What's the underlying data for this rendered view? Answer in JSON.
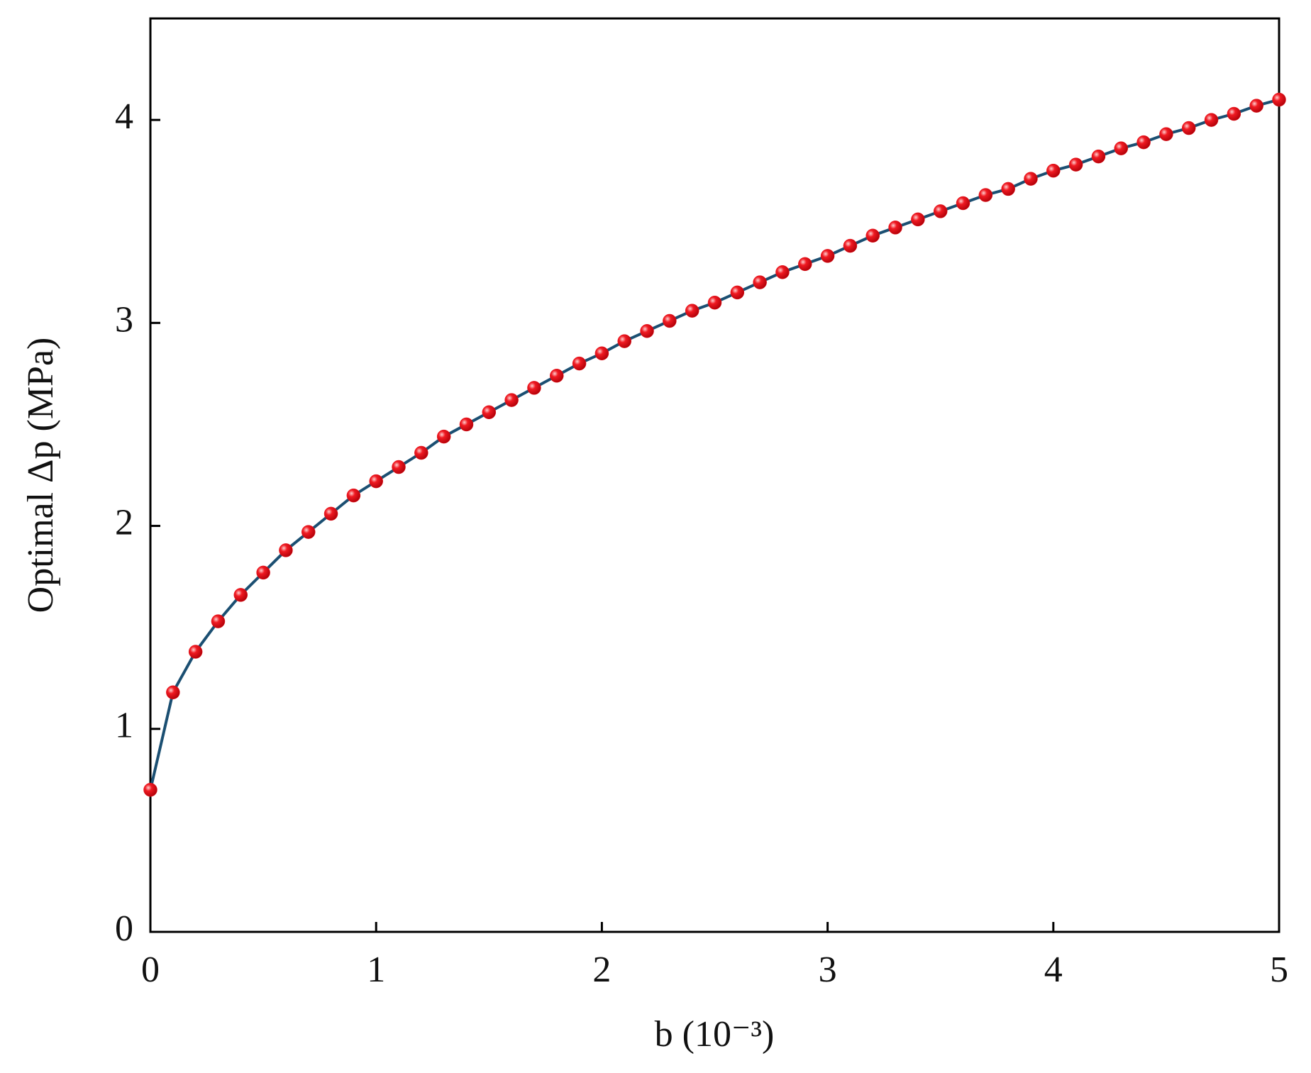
{
  "chart_data": {
    "type": "line",
    "xlabel": "b (10⁻³)",
    "ylabel": "Optimal Δp (MPa)",
    "x": [
      0,
      0.1,
      0.2,
      0.3,
      0.4,
      0.5,
      0.6,
      0.7,
      0.8,
      0.9,
      1.0,
      1.1,
      1.2,
      1.3,
      1.4,
      1.5,
      1.6,
      1.7,
      1.8,
      1.9,
      2.0,
      2.1,
      2.2,
      2.3,
      2.4,
      2.5,
      2.6,
      2.7,
      2.8,
      2.9,
      3.0,
      3.1,
      3.2,
      3.3,
      3.4,
      3.5,
      3.6,
      3.7,
      3.8,
      3.9,
      4.0,
      4.1,
      4.2,
      4.3,
      4.4,
      4.5,
      4.6,
      4.7,
      4.8,
      4.9,
      5.0
    ],
    "series": [
      {
        "color": "#1b4f72",
        "marker_color": "#e8141c",
        "values": [
          0.7,
          1.18,
          1.38,
          1.53,
          1.66,
          1.77,
          1.88,
          1.97,
          2.06,
          2.15,
          2.22,
          2.29,
          2.36,
          2.44,
          2.5,
          2.56,
          2.62,
          2.68,
          2.74,
          2.8,
          2.85,
          2.91,
          2.96,
          3.01,
          3.06,
          3.1,
          3.15,
          3.2,
          3.25,
          3.29,
          3.33,
          3.38,
          3.43,
          3.47,
          3.51,
          3.55,
          3.59,
          3.63,
          3.66,
          3.71,
          3.75,
          3.78,
          3.82,
          3.86,
          3.89,
          3.93,
          3.96,
          4.0,
          4.03,
          4.07,
          4.1
        ]
      }
    ],
    "xlim": [
      0,
      5
    ],
    "xticks": [
      0,
      1,
      2,
      3,
      4,
      5
    ],
    "ylim": [
      0,
      4.5
    ],
    "yticks": [
      0,
      1,
      2,
      3,
      4
    ]
  }
}
